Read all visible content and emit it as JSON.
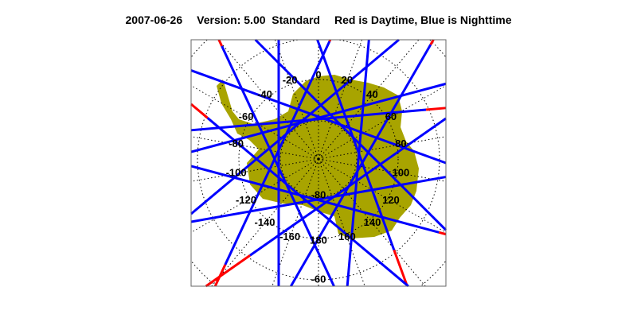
{
  "title": {
    "date": "2007-06-26",
    "version": "Version: 5.00  Standard",
    "legend_text": "Red is Daytime, Blue is Nighttime"
  },
  "map": {
    "projection": "south polar stereographic",
    "region": "Antarctica",
    "land_color": "#a8a400",
    "day_color": "#ff0000",
    "night_color": "#0000ff",
    "grid_style": "dotted",
    "longitude_labels": [
      "0",
      "20",
      "40",
      "60",
      "80",
      "100",
      "120",
      "140",
      "160",
      "180",
      "-160",
      "-140",
      "-120",
      "-100",
      "-80",
      "-60",
      "-40",
      "-20"
    ],
    "longitude_values": [
      0,
      20,
      40,
      60,
      80,
      100,
      120,
      140,
      160,
      180,
      -160,
      -140,
      -120,
      -100,
      -80,
      -60,
      -40,
      -20
    ],
    "latitude_labels": [
      "-80",
      "-60"
    ]
  }
}
